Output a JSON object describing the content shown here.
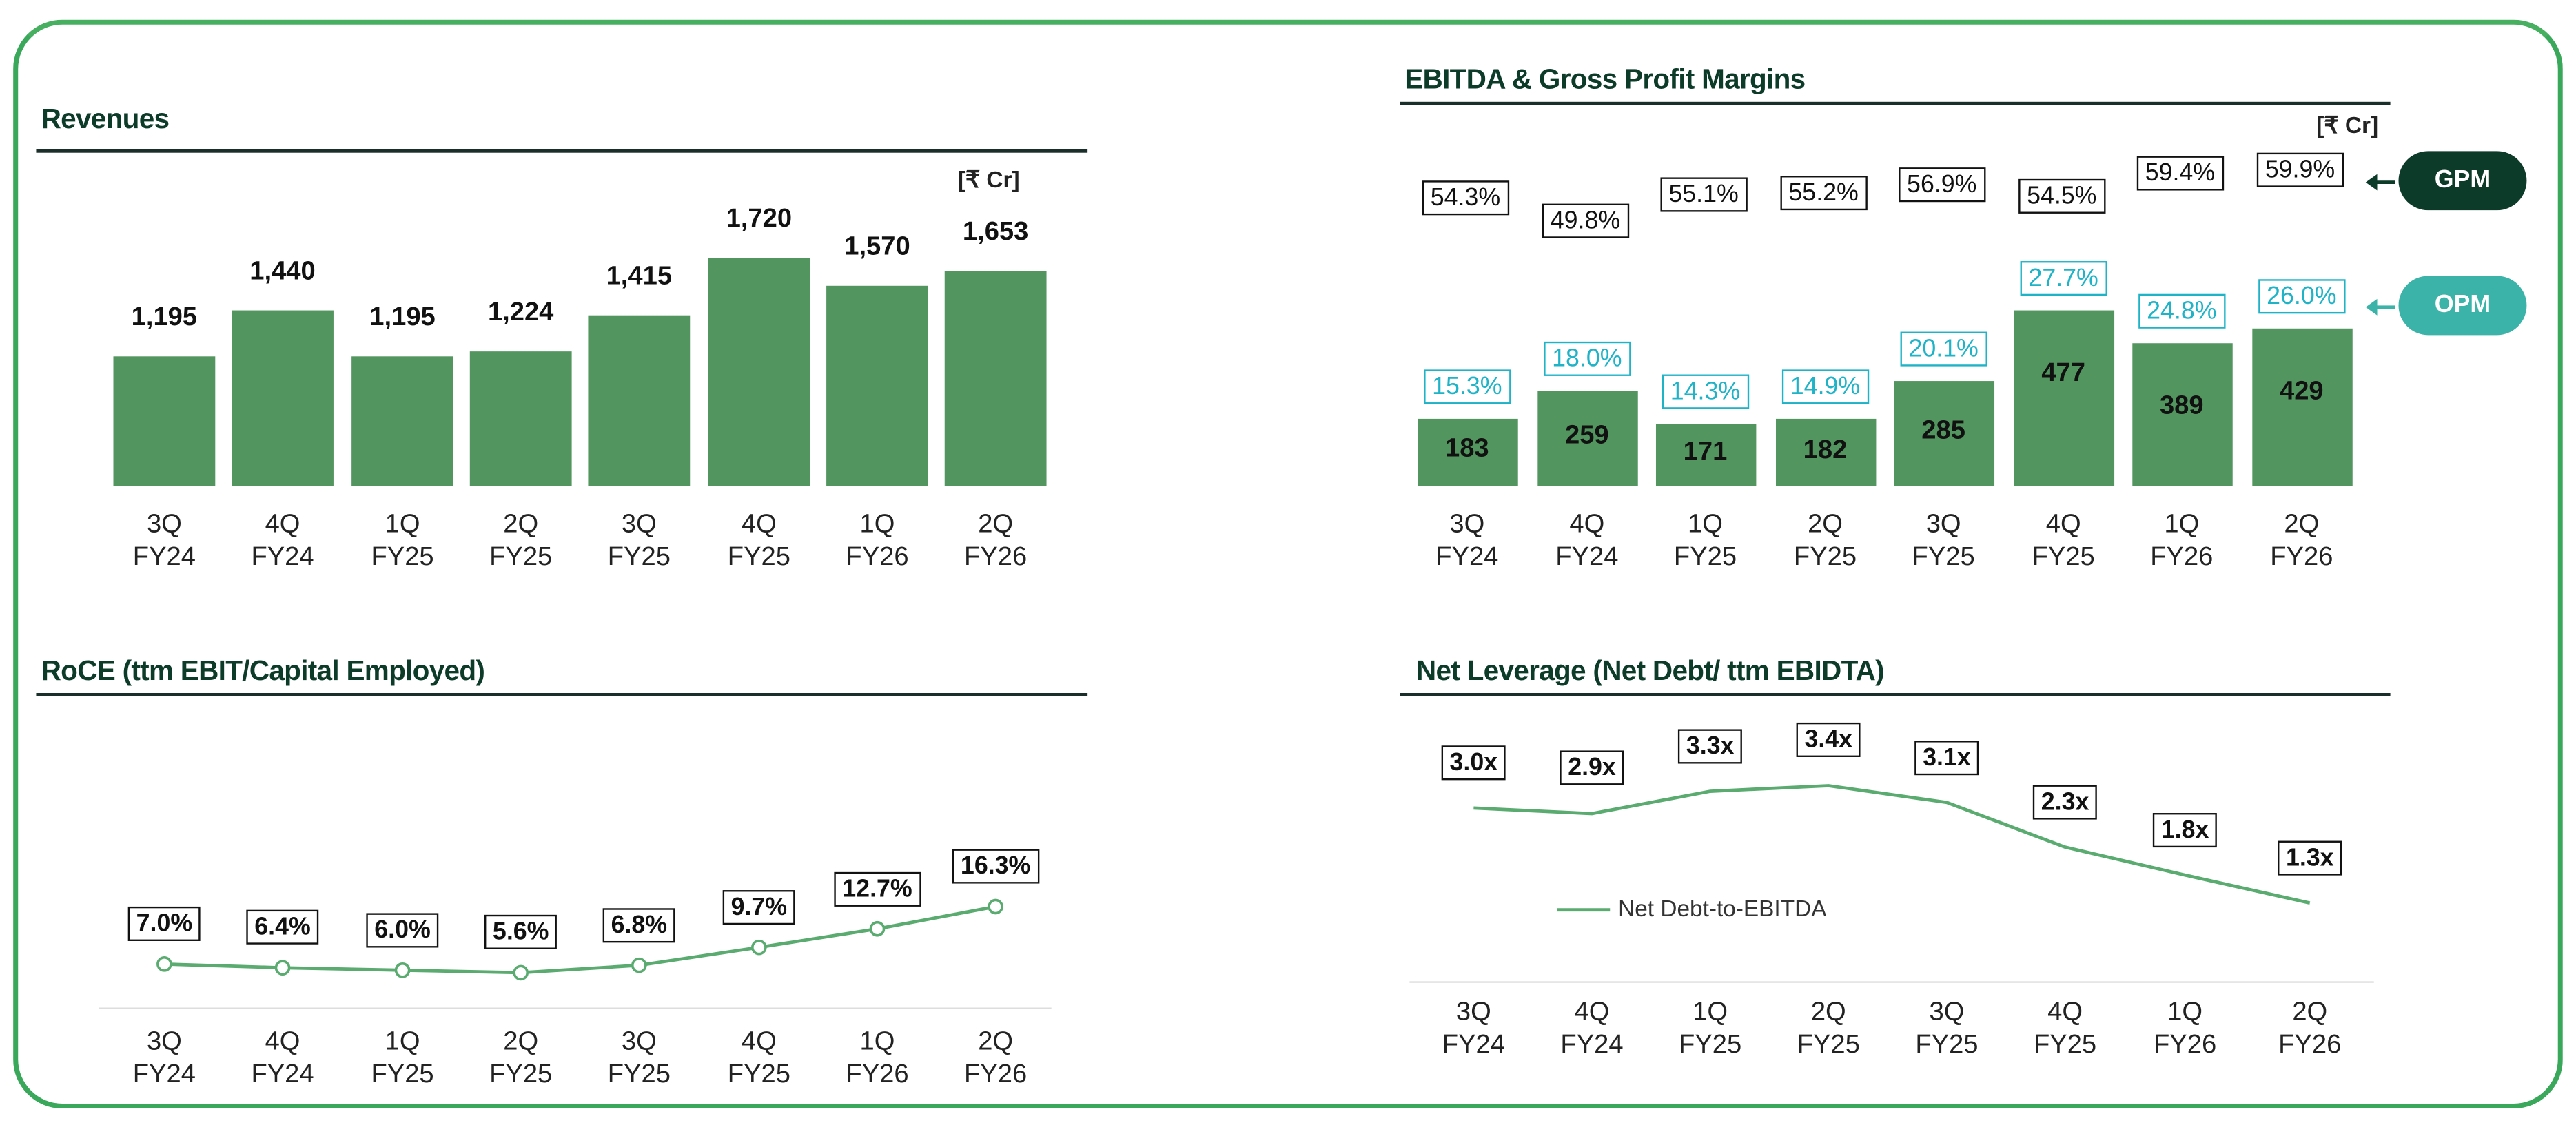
{
  "categories": [
    [
      "3Q",
      "FY24"
    ],
    [
      "4Q",
      "FY24"
    ],
    [
      "1Q",
      "FY25"
    ],
    [
      "2Q",
      "FY25"
    ],
    [
      "3Q",
      "FY25"
    ],
    [
      "4Q",
      "FY25"
    ],
    [
      "1Q",
      "FY26"
    ],
    [
      "2Q",
      "FY26"
    ]
  ],
  "colors": {
    "bar": "#52955f",
    "line": "#5aab6f",
    "gpm_pill": "#0d3b2a",
    "opm_pill": "#3bb3a8",
    "opm_text": "#1fb3c8",
    "frame": "#3aa85a"
  },
  "chart_data": [
    {
      "type": "bar",
      "title": "Revenues",
      "unit": "[₹ Cr]",
      "categories": [
        "3Q FY24",
        "4Q FY24",
        "1Q FY25",
        "2Q FY25",
        "3Q FY25",
        "4Q FY25",
        "1Q FY26",
        "2Q FY26"
      ],
      "values": [
        1195,
        1440,
        1195,
        1224,
        1415,
        1720,
        1570,
        1653
      ],
      "labels": [
        "1,195",
        "1,440",
        "1,195",
        "1,224",
        "1,415",
        "1,720",
        "1,570",
        "1,653"
      ]
    },
    {
      "type": "bar",
      "title": "EBITDA & Gross Profit Margins",
      "unit": "[₹ Cr]",
      "categories": [
        "3Q FY24",
        "4Q FY24",
        "1Q FY25",
        "2Q FY25",
        "3Q FY25",
        "4Q FY25",
        "1Q FY26",
        "2Q FY26"
      ],
      "values": [
        183,
        259,
        171,
        182,
        285,
        477,
        389,
        429
      ],
      "labels": [
        "183",
        "259",
        "171",
        "182",
        "285",
        "477",
        "389",
        "429"
      ],
      "series": [
        {
          "name": "GPM",
          "values": [
            54.3,
            49.8,
            55.1,
            55.2,
            56.9,
            54.5,
            59.4,
            59.9
          ],
          "labels": [
            "54.3%",
            "49.8%",
            "55.1%",
            "55.2%",
            "56.9%",
            "54.5%",
            "59.4%",
            "59.9%"
          ]
        },
        {
          "name": "OPM",
          "values": [
            15.3,
            18.0,
            14.3,
            14.9,
            20.1,
            27.7,
            24.8,
            26.0
          ],
          "labels": [
            "15.3%",
            "18.0%",
            "14.3%",
            "14.9%",
            "20.1%",
            "27.7%",
            "24.8%",
            "26.0%"
          ]
        }
      ]
    },
    {
      "type": "line",
      "title": "RoCE (ttm EBIT/Capital Employed)",
      "categories": [
        "3Q FY24",
        "4Q FY24",
        "1Q FY25",
        "2Q FY25",
        "3Q FY25",
        "4Q FY25",
        "1Q FY26",
        "2Q FY26"
      ],
      "values": [
        7.0,
        6.4,
        6.0,
        5.6,
        6.8,
        9.7,
        12.7,
        16.3
      ],
      "labels": [
        "7.0%",
        "6.4%",
        "6.0%",
        "5.6%",
        "6.8%",
        "9.7%",
        "12.7%",
        "16.3%"
      ],
      "markers": true
    },
    {
      "type": "line",
      "title": "Net Leverage (Net Debt/ ttm EBIDTA)",
      "categories": [
        "3Q FY24",
        "4Q FY24",
        "1Q FY25",
        "2Q FY25",
        "3Q FY25",
        "4Q FY25",
        "1Q FY26",
        "2Q FY26"
      ],
      "values": [
        3.0,
        2.9,
        3.3,
        3.4,
        3.1,
        2.3,
        1.8,
        1.3
      ],
      "labels": [
        "3.0x",
        "2.9x",
        "3.3x",
        "3.4x",
        "3.1x",
        "2.3x",
        "1.8x",
        "1.3x"
      ],
      "legend": "Net Debt-to-EBITDA",
      "legend_position": "left"
    }
  ]
}
